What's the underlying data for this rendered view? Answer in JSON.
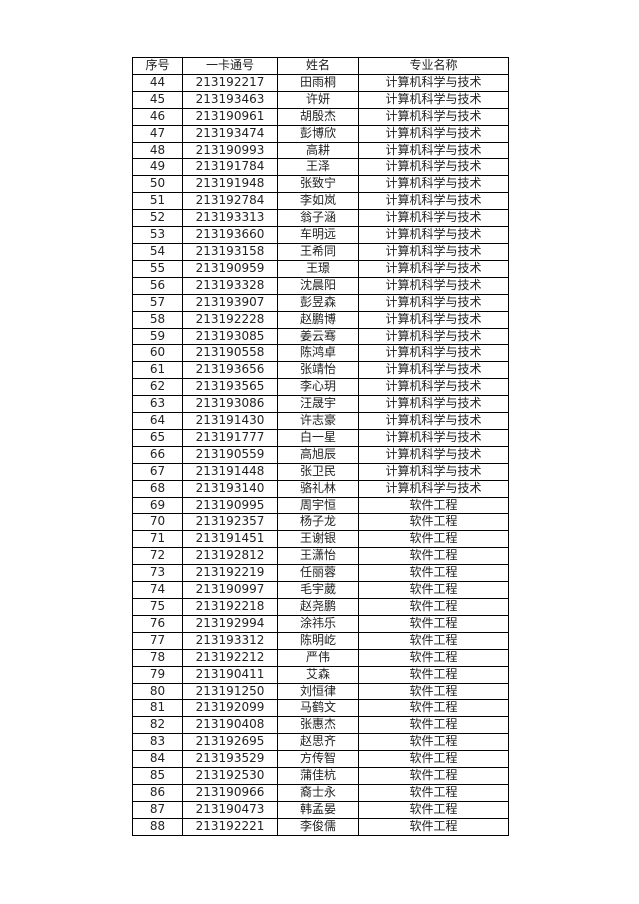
{
  "table": {
    "headers": [
      "序号",
      "一卡通号",
      "姓名",
      "专业名称"
    ],
    "rows": [
      [
        "44",
        "213192217",
        "田雨桐",
        "计算机科学与技术"
      ],
      [
        "45",
        "213193463",
        "许妍",
        "计算机科学与技术"
      ],
      [
        "46",
        "213190961",
        "胡殷杰",
        "计算机科学与技术"
      ],
      [
        "47",
        "213193474",
        "彭博欣",
        "计算机科学与技术"
      ],
      [
        "48",
        "213190993",
        "高耕",
        "计算机科学与技术"
      ],
      [
        "49",
        "213191784",
        "王泽",
        "计算机科学与技术"
      ],
      [
        "50",
        "213191948",
        "张致宁",
        "计算机科学与技术"
      ],
      [
        "51",
        "213192784",
        "李如岚",
        "计算机科学与技术"
      ],
      [
        "52",
        "213193313",
        "翁子涵",
        "计算机科学与技术"
      ],
      [
        "53",
        "213193660",
        "车明远",
        "计算机科学与技术"
      ],
      [
        "54",
        "213193158",
        "王希同",
        "计算机科学与技术"
      ],
      [
        "55",
        "213190959",
        "王璟",
        "计算机科学与技术"
      ],
      [
        "56",
        "213193328",
        "沈晨阳",
        "计算机科学与技术"
      ],
      [
        "57",
        "213193907",
        "彭昱森",
        "计算机科学与技术"
      ],
      [
        "58",
        "213192228",
        "赵鹏博",
        "计算机科学与技术"
      ],
      [
        "59",
        "213193085",
        "姜云骞",
        "计算机科学与技术"
      ],
      [
        "60",
        "213190558",
        "陈鸿卓",
        "计算机科学与技术"
      ],
      [
        "61",
        "213193656",
        "张靖怡",
        "计算机科学与技术"
      ],
      [
        "62",
        "213193565",
        "李心玥",
        "计算机科学与技术"
      ],
      [
        "63",
        "213193086",
        "汪晟宇",
        "计算机科学与技术"
      ],
      [
        "64",
        "213191430",
        "许志豪",
        "计算机科学与技术"
      ],
      [
        "65",
        "213191777",
        "白一星",
        "计算机科学与技术"
      ],
      [
        "66",
        "213190559",
        "高旭辰",
        "计算机科学与技术"
      ],
      [
        "67",
        "213191448",
        "张卫民",
        "计算机科学与技术"
      ],
      [
        "68",
        "213193140",
        "骆礼林",
        "计算机科学与技术"
      ],
      [
        "69",
        "213190995",
        "周宇恒",
        "软件工程"
      ],
      [
        "70",
        "213192357",
        "杨子龙",
        "软件工程"
      ],
      [
        "71",
        "213191451",
        "王谢银",
        "软件工程"
      ],
      [
        "72",
        "213192812",
        "王潇怡",
        "软件工程"
      ],
      [
        "73",
        "213192219",
        "任丽蓉",
        "软件工程"
      ],
      [
        "74",
        "213190997",
        "毛宇葳",
        "软件工程"
      ],
      [
        "75",
        "213192218",
        "赵尧鹏",
        "软件工程"
      ],
      [
        "76",
        "213192994",
        "涂祎乐",
        "软件工程"
      ],
      [
        "77",
        "213193312",
        "陈明屹",
        "软件工程"
      ],
      [
        "78",
        "213192212",
        "严伟",
        "软件工程"
      ],
      [
        "79",
        "213190411",
        "艾森",
        "软件工程"
      ],
      [
        "80",
        "213191250",
        "刘恒律",
        "软件工程"
      ],
      [
        "81",
        "213192099",
        "马鹤文",
        "软件工程"
      ],
      [
        "82",
        "213190408",
        "张惠杰",
        "软件工程"
      ],
      [
        "83",
        "213192695",
        "赵思齐",
        "软件工程"
      ],
      [
        "84",
        "213193529",
        "方传智",
        "软件工程"
      ],
      [
        "85",
        "213192530",
        "蒲佳杭",
        "软件工程"
      ],
      [
        "86",
        "213190966",
        "裔士永",
        "软件工程"
      ],
      [
        "87",
        "213190473",
        "韩孟晏",
        "软件工程"
      ],
      [
        "88",
        "213192221",
        "李俊儒",
        "软件工程"
      ]
    ]
  }
}
